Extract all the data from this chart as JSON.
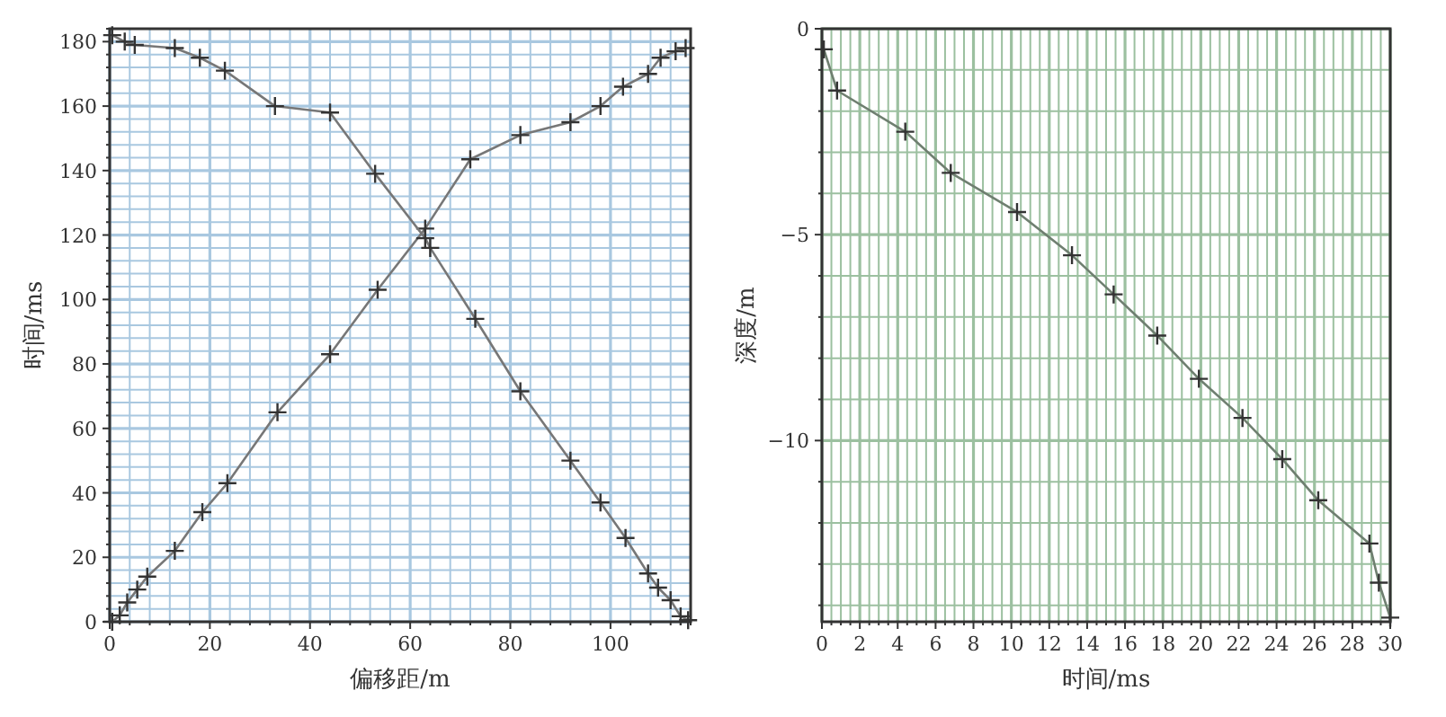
{
  "chart_data": [
    {
      "type": "line",
      "xlabel": "偏移距/m",
      "ylabel": "时间/ms",
      "xlim": [
        0,
        116
      ],
      "ylim": [
        0,
        184
      ],
      "xticks": [
        0,
        {
          "value": 4,
          "label": null
        },
        {
          "value": 8,
          "label": null
        },
        {
          "value": 12,
          "label": null
        },
        {
          "value": 16,
          "label": null
        },
        20,
        {
          "value": 24,
          "label": null
        },
        {
          "value": 28,
          "label": null
        },
        {
          "value": 32,
          "label": null
        },
        {
          "value": 36,
          "label": null
        },
        40,
        {
          "value": 44,
          "label": null
        },
        {
          "value": 48,
          "label": null
        },
        {
          "value": 52,
          "label": null
        },
        {
          "value": 56,
          "label": null
        },
        60,
        {
          "value": 64,
          "label": null
        },
        {
          "value": 68,
          "label": null
        },
        {
          "value": 72,
          "label": null
        },
        {
          "value": 76,
          "label": null
        },
        80,
        {
          "value": 84,
          "label": null
        },
        {
          "value": 88,
          "label": null
        },
        {
          "value": 92,
          "label": null
        },
        {
          "value": 96,
          "label": null
        },
        100,
        {
          "value": 104,
          "label": null
        },
        {
          "value": 108,
          "label": null
        },
        {
          "value": 112,
          "label": null
        },
        {
          "value": 116,
          "label": null
        }
      ],
      "yticks": [
        0,
        {
          "value": 4,
          "label": null
        },
        {
          "value": 8,
          "label": null
        },
        {
          "value": 12,
          "label": null
        },
        {
          "value": 16,
          "label": null
        },
        20,
        {
          "value": 24,
          "label": null
        },
        {
          "value": 28,
          "label": null
        },
        {
          "value": 32,
          "label": null
        },
        {
          "value": 36,
          "label": null
        },
        40,
        {
          "value": 44,
          "label": null
        },
        {
          "value": 48,
          "label": null
        },
        {
          "value": 52,
          "label": null
        },
        {
          "value": 56,
          "label": null
        },
        60,
        {
          "value": 64,
          "label": null
        },
        {
          "value": 68,
          "label": null
        },
        {
          "value": 72,
          "label": null
        },
        {
          "value": 76,
          "label": null
        },
        80,
        {
          "value": 84,
          "label": null
        },
        {
          "value": 88,
          "label": null
        },
        {
          "value": 92,
          "label": null
        },
        {
          "value": 96,
          "label": null
        },
        100,
        {
          "value": 104,
          "label": null
        },
        {
          "value": 108,
          "label": null
        },
        {
          "value": 112,
          "label": null
        },
        {
          "value": 116,
          "label": null
        },
        120,
        {
          "value": 124,
          "label": null
        },
        {
          "value": 128,
          "label": null
        },
        {
          "value": 132,
          "label": null
        },
        {
          "value": 136,
          "label": null
        },
        140,
        {
          "value": 144,
          "label": null
        },
        {
          "value": 148,
          "label": null
        },
        {
          "value": 152,
          "label": null
        },
        {
          "value": 156,
          "label": null
        },
        160,
        {
          "value": 164,
          "label": null
        },
        {
          "value": 168,
          "label": null
        },
        {
          "value": 172,
          "label": null
        },
        {
          "value": 176,
          "label": null
        },
        180,
        {
          "value": 184,
          "label": null
        }
      ],
      "grid": true,
      "marker": "cross",
      "line_style": "solid",
      "series": [
        {
          "color": "#777777",
          "x": [
            0.5,
            2,
            3.5,
            5.5,
            7.5,
            13,
            18.5,
            23.5,
            33.5,
            44,
            53.5,
            63,
            72,
            82,
            92,
            98,
            102.5,
            107.5,
            110,
            113,
            115
          ],
          "values": [
            0,
            2,
            6,
            10,
            14,
            22,
            34,
            43,
            65,
            83,
            103,
            122,
            143.5,
            151,
            155,
            160,
            166,
            170,
            175,
            177,
            178
          ]
        },
        {
          "color": "#777777",
          "x": [
            0.5,
            3,
            5,
            13,
            18,
            23,
            33,
            44,
            53,
            63,
            64,
            73,
            82,
            92,
            98,
            103,
            107.5,
            109.5,
            112,
            114,
            115.5
          ],
          "values": [
            182,
            180,
            179,
            178,
            175,
            171,
            160,
            158,
            139,
            119,
            116,
            94,
            71.5,
            50,
            37,
            26,
            15,
            10.6,
            6.7,
            1.7,
            0.5
          ]
        }
      ]
    },
    {
      "type": "line",
      "xlabel": "时间/ms",
      "ylabel": "深度/m",
      "xlim": [
        0,
        30
      ],
      "ylim": [
        -14.4,
        0
      ],
      "xticks": [
        0,
        {
          "value": 0.5,
          "label": null
        },
        {
          "value": 1,
          "label": null
        },
        {
          "value": 1.5,
          "label": null
        },
        2,
        {
          "value": 2.5,
          "label": null
        },
        {
          "value": 3,
          "label": null
        },
        {
          "value": 3.5,
          "label": null
        },
        4,
        {
          "value": 4.5,
          "label": null
        },
        {
          "value": 5,
          "label": null
        },
        {
          "value": 5.5,
          "label": null
        },
        6,
        {
          "value": 6.5,
          "label": null
        },
        {
          "value": 7,
          "label": null
        },
        {
          "value": 7.5,
          "label": null
        },
        8,
        {
          "value": 8.5,
          "label": null
        },
        {
          "value": 9,
          "label": null
        },
        {
          "value": 9.5,
          "label": null
        },
        10,
        {
          "value": 10.5,
          "label": null
        },
        {
          "value": 11,
          "label": null
        },
        {
          "value": 11.5,
          "label": null
        },
        12,
        {
          "value": 12.5,
          "label": null
        },
        {
          "value": 13,
          "label": null
        },
        {
          "value": 13.5,
          "label": null
        },
        14,
        {
          "value": 14.5,
          "label": null
        },
        {
          "value": 15,
          "label": null
        },
        {
          "value": 15.5,
          "label": null
        },
        16,
        {
          "value": 16.5,
          "label": null
        },
        {
          "value": 17,
          "label": null
        },
        {
          "value": 17.5,
          "label": null
        },
        18,
        {
          "value": 18.5,
          "label": null
        },
        {
          "value": 19,
          "label": null
        },
        {
          "value": 19.5,
          "label": null
        },
        20,
        {
          "value": 20.5,
          "label": null
        },
        {
          "value": 21,
          "label": null
        },
        {
          "value": 21.5,
          "label": null
        },
        22,
        {
          "value": 22.5,
          "label": null
        },
        {
          "value": 23,
          "label": null
        },
        {
          "value": 23.5,
          "label": null
        },
        24,
        {
          "value": 24.5,
          "label": null
        },
        {
          "value": 25,
          "label": null
        },
        {
          "value": 25.5,
          "label": null
        },
        26,
        {
          "value": 26.5,
          "label": null
        },
        {
          "value": 27,
          "label": null
        },
        {
          "value": 27.5,
          "label": null
        },
        28,
        {
          "value": 28.5,
          "label": null
        },
        {
          "value": 29,
          "label": null
        },
        {
          "value": 29.5,
          "label": null
        },
        30
      ],
      "yticks": [
        0,
        {
          "value": -1,
          "label": null
        },
        {
          "value": -2,
          "label": null
        },
        {
          "value": -3,
          "label": null
        },
        {
          "value": -4,
          "label": null
        },
        -5,
        {
          "value": -6,
          "label": null
        },
        {
          "value": -7,
          "label": null
        },
        {
          "value": -8,
          "label": null
        },
        {
          "value": -9,
          "label": null
        },
        -10,
        {
          "value": -11,
          "label": null
        },
        {
          "value": -12,
          "label": null
        },
        {
          "value": -13,
          "label": null
        },
        {
          "value": -14,
          "label": null
        }
      ],
      "grid": true,
      "marker": "cross",
      "line_style": "solid",
      "series": [
        {
          "color": "#6f7f70",
          "x": [
            0.1,
            0.8,
            4.4,
            6.8,
            10.3,
            13.2,
            15.4,
            17.7,
            19.9,
            22.2,
            24.3,
            26.2,
            28.9,
            29.4,
            30
          ],
          "values": [
            -0.5,
            -1.5,
            -2.5,
            -3.5,
            -4.45,
            -5.5,
            -6.45,
            -7.45,
            -8.5,
            -9.45,
            -10.45,
            -11.45,
            -12.5,
            -13.45,
            -14.3
          ]
        }
      ]
    }
  ]
}
